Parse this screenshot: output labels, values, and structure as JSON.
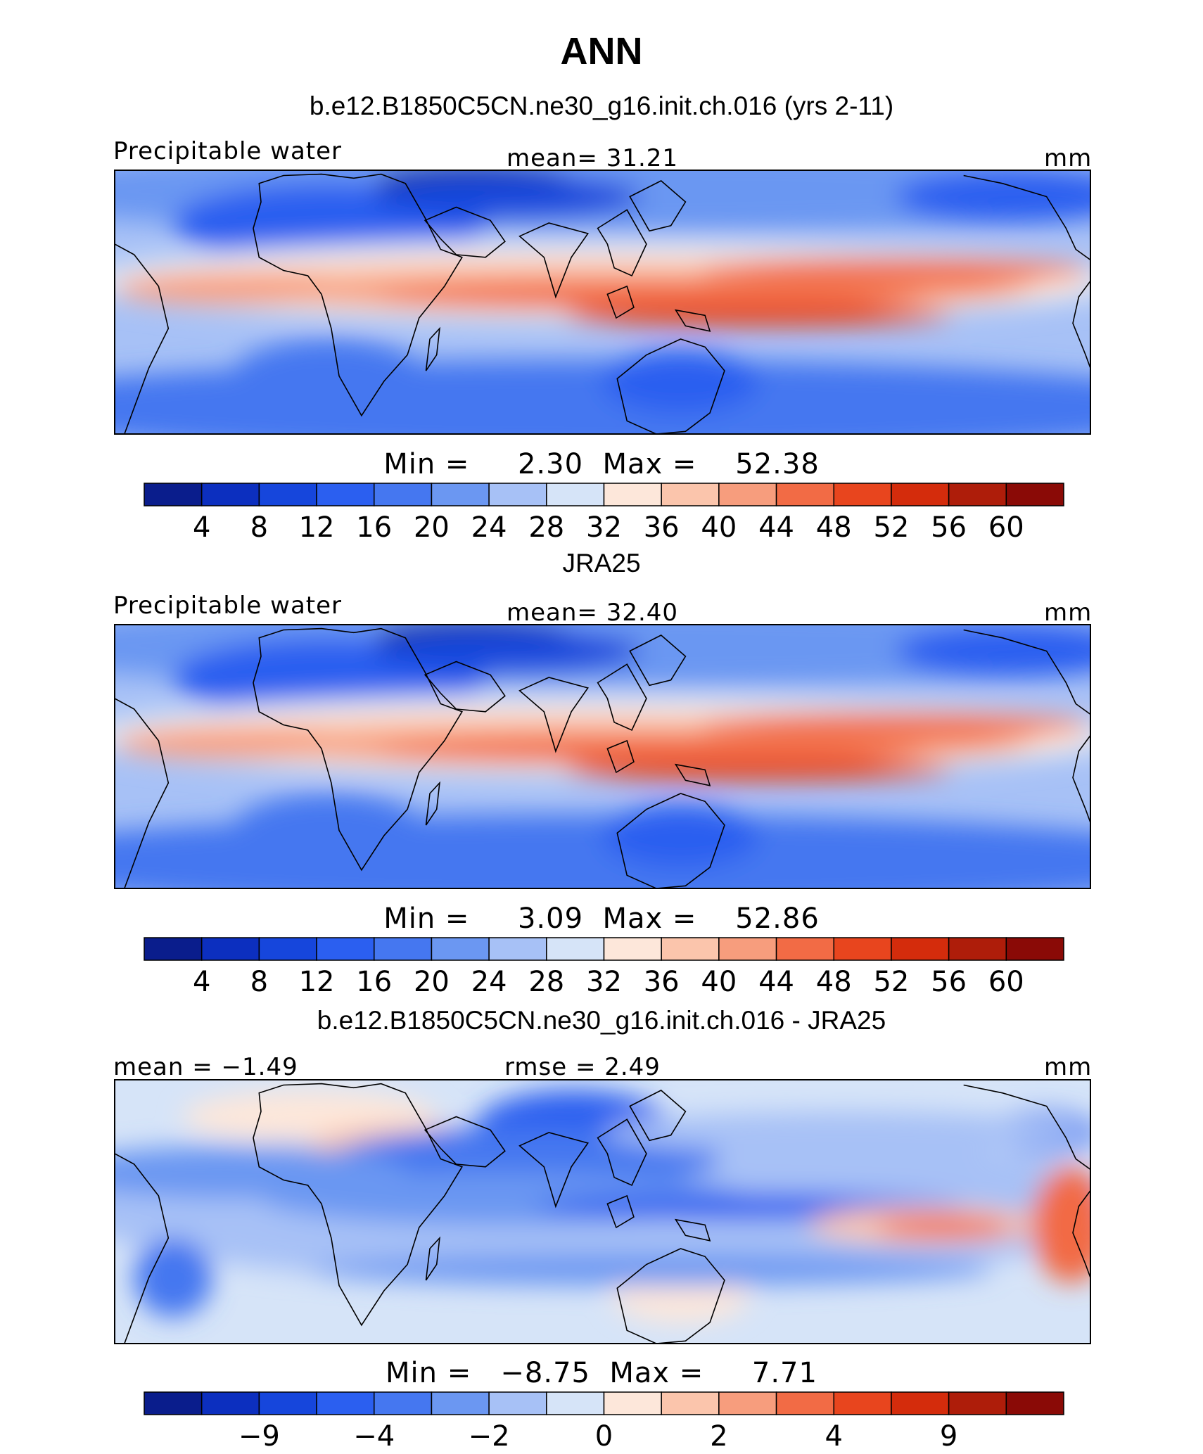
{
  "title": "ANN",
  "colors": {
    "palette": [
      "#0a1d8c",
      "#0c2fbf",
      "#1646dc",
      "#2b5ff0",
      "#4577f0",
      "#6b97f2",
      "#a7c1f6",
      "#d6e4f8",
      "#fde7da",
      "#fbc5ac",
      "#f79d7d",
      "#f26b45",
      "#e8451e",
      "#d42c0c",
      "#ae1d0a",
      "#8a0a06"
    ],
    "coastline": "#000000"
  },
  "panels": [
    {
      "title": "b.e12.B1850C5CN.ne30_g16.init.ch.016 (yrs 2-11)",
      "left_label": "Precipitable water",
      "center_label": "mean=   31.21",
      "right_label": "mm",
      "min_max": "Min =     2.30  Max =    52.38",
      "colorbar_ticks": [
        "4",
        "8",
        "12",
        "16",
        "20",
        "24",
        "28",
        "32",
        "36",
        "40",
        "44",
        "48",
        "52",
        "56",
        "60"
      ],
      "map_kind": "field"
    },
    {
      "title": "JRA25",
      "left_label": "Precipitable water",
      "center_label": "mean=   32.40",
      "right_label": "mm",
      "min_max": "Min =     3.09  Max =    52.86",
      "colorbar_ticks": [
        "4",
        "8",
        "12",
        "16",
        "20",
        "24",
        "28",
        "32",
        "36",
        "40",
        "44",
        "48",
        "52",
        "56",
        "60"
      ],
      "map_kind": "field"
    },
    {
      "title": "b.e12.B1850C5CN.ne30_g16.init.ch.016 - JRA25",
      "left_label": "mean =  −1.49",
      "center_label": "rmse =     2.49",
      "right_label": "mm",
      "min_max": "Min =   −8.75  Max =     7.71",
      "colorbar_ticks": [
        "−9",
        "−4",
        "−2",
        "0",
        "2",
        "4",
        "9"
      ],
      "map_kind": "difference"
    }
  ]
}
